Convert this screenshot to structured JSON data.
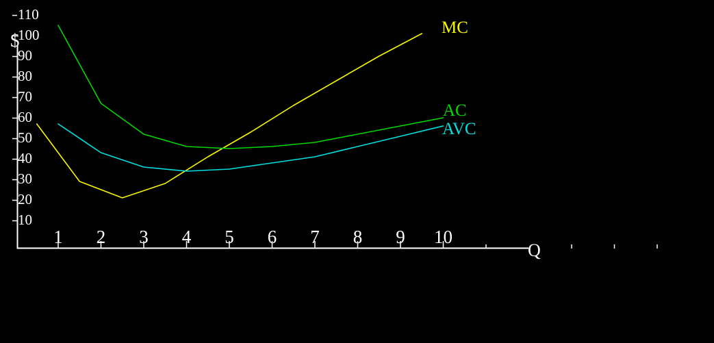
{
  "background": "#000000",
  "axis_color": "#ffffff",
  "chart_data": {
    "type": "line",
    "title": "",
    "xlabel": "Q",
    "ylabel": "$",
    "grid": false,
    "legend_position": "inline-labels-right",
    "ylim": [
      10,
      110
    ],
    "y_tick_labels": [
      "10",
      "20",
      "30",
      "40",
      "50",
      "60",
      "70",
      "80",
      "90",
      "100",
      "110"
    ],
    "x_tick_labels": [
      "1",
      "2",
      "3",
      "4",
      "5",
      "6",
      "7",
      "8",
      "9",
      "10"
    ],
    "unlabeled_x_ticks": [
      11,
      13,
      14,
      15
    ],
    "x_axis_end": 12,
    "series": [
      {
        "name": "MC",
        "label": "MC",
        "color": "#f8f800",
        "x": [
          0.5,
          1.5,
          2.5,
          3.5,
          4.5,
          5.5,
          6.5,
          7.5,
          8.5,
          9.5
        ],
        "values": [
          57,
          29,
          21,
          28,
          41,
          53,
          66,
          78,
          90,
          101
        ]
      },
      {
        "name": "AC",
        "label": "AC",
        "color": "#00d800",
        "x": [
          1,
          2,
          3,
          4,
          5,
          6,
          7,
          8,
          9,
          10
        ],
        "values": [
          105,
          67,
          52,
          46,
          45,
          46,
          48,
          52,
          56,
          60
        ]
      },
      {
        "name": "AVC",
        "label": "AVC",
        "color": "#00e0e0",
        "x": [
          1,
          2,
          3,
          4,
          5,
          6,
          7,
          8,
          9,
          10
        ],
        "values": [
          57,
          43,
          36,
          34,
          35,
          38,
          41,
          46,
          51,
          56
        ]
      }
    ]
  }
}
